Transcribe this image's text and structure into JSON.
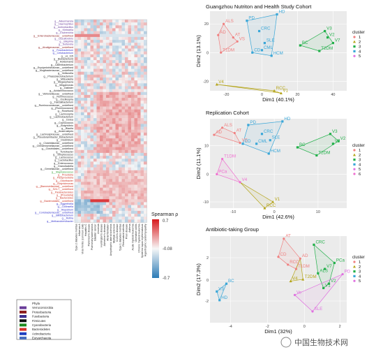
{
  "heatmap": {
    "rows": [
      {
        "label": "g__Akkermansia",
        "color": "#6a3d9a"
      },
      {
        "label": "g__Haemophilus",
        "color": "#6a3d9a"
      },
      {
        "label": "g__Actinobacillus",
        "color": "#6a3d9a"
      },
      {
        "label": "g__Klebsiella",
        "color": "#6a3d9a"
      },
      {
        "label": "g__Escherichia",
        "color": "#6a3d9a"
      },
      {
        "label": "g__Enterobacteriaceae__undefined",
        "color": "#8b1a1a"
      },
      {
        "label": "g__Desulfovibrio",
        "color": "#6a3d9a"
      },
      {
        "label": "g__Bilophila",
        "color": "#6a3d9a"
      },
      {
        "label": "g__Sutterella",
        "color": "#6a3d9a"
      },
      {
        "label": "g__Alcaligenaceae__undefined",
        "color": "#8b1a1a"
      },
      {
        "label": "g__Fusobacterium",
        "color": "#3333cc"
      },
      {
        "label": "g__Cetobacterium",
        "color": "#3333cc"
      },
      {
        "label": "g__vs_115",
        "color": "#222222"
      },
      {
        "label": "g__[Eubacterium]",
        "color": "#222222"
      },
      {
        "label": "g__Holdemania",
        "color": "#222222"
      },
      {
        "label": "g__Catenibacterium",
        "color": "#222222"
      },
      {
        "label": "g__Erysipelotrichaceae__undefined",
        "color": "#222222"
      },
      {
        "label": "g__Mogibacteriaceae__undefined",
        "color": "#222222"
      },
      {
        "label": "g__Veillonella",
        "color": "#222222"
      },
      {
        "label": "g__Phascolarctobacterium",
        "color": "#222222"
      },
      {
        "label": "g__Mitsuokella",
        "color": "#222222"
      },
      {
        "label": "g__Megasphaera",
        "color": "#222222"
      },
      {
        "label": "g__Megamonas",
        "color": "#222222"
      },
      {
        "label": "g__Dialister",
        "color": "#222222"
      },
      {
        "label": "g__Acidaminococcus",
        "color": "#222222"
      },
      {
        "label": "g__Veillonellaceae__undefined",
        "color": "#222222"
      },
      {
        "label": "g__Ruminococcus",
        "color": "#222222"
      },
      {
        "label": "g__Oscillospira",
        "color": "#222222"
      },
      {
        "label": "g__Faecalibacterium",
        "color": "#222222"
      },
      {
        "label": "g__Ruminococcaceae__undefined",
        "color": "#222222"
      },
      {
        "label": "g__[Ruminococcus]",
        "color": "#222222"
      },
      {
        "label": "g__Roseburia",
        "color": "#222222"
      },
      {
        "label": "g__Lachnospira",
        "color": "#222222"
      },
      {
        "label": "g__Lachnobacterium",
        "color": "#222222"
      },
      {
        "label": "g__Dorea",
        "color": "#222222"
      },
      {
        "label": "g__Coprococcus",
        "color": "#222222"
      },
      {
        "label": "g__Butyrivibrio",
        "color": "#222222"
      },
      {
        "label": "g__Blautia",
        "color": "#222222"
      },
      {
        "label": "g__Anaerostipes",
        "color": "#222222"
      },
      {
        "label": "g__Lachnospiraceae__undefined",
        "color": "#222222"
      },
      {
        "label": "g__Pseudoramibacter_Eubacterium",
        "color": "#222222"
      },
      {
        "label": "g__Clostridium",
        "color": "#222222"
      },
      {
        "label": "g__Clostridiaceae__undefined",
        "color": "#222222"
      },
      {
        "label": "g__Christensenellaceae__undefined",
        "color": "#222222"
      },
      {
        "label": "g__Clostridiales__undefined",
        "color": "#222222"
      },
      {
        "label": "g__Turicibacter",
        "color": "#222222"
      },
      {
        "label": "g__Streptococcus",
        "color": "#222222"
      },
      {
        "label": "g__Lactococcus",
        "color": "#222222"
      },
      {
        "label": "g__Lactobacillus",
        "color": "#222222"
      },
      {
        "label": "g__Enterococcus",
        "color": "#222222"
      },
      {
        "label": "g__Granulicatella",
        "color": "#222222"
      },
      {
        "label": "g__Gemellaceae__undefined",
        "color": "#222222"
      },
      {
        "label": "g__Staphylococcus",
        "color": "#2e9e2e"
      },
      {
        "label": "g__Prevotella",
        "color": "#cc3322"
      },
      {
        "label": "g__Paraprevotella",
        "color": "#cc3322"
      },
      {
        "label": "g__Odoribacter",
        "color": "#cc3322"
      },
      {
        "label": "g__Butyricimonas",
        "color": "#cc3322"
      },
      {
        "label": "g__[Barnesiellaceae]__undefined",
        "color": "#cc3322"
      },
      {
        "label": "g__S24-7__undefined",
        "color": "#cc3322"
      },
      {
        "label": "g__Parabacteroides",
        "color": "#cc3322"
      },
      {
        "label": "g__[Prevotella]",
        "color": "#cc3322"
      },
      {
        "label": "g__Bacteroides",
        "color": "#cc3322"
      },
      {
        "label": "g__Bacteroidales__undefined",
        "color": "#cc3322"
      },
      {
        "label": "g__Eggerthella",
        "color": "#3333cc"
      },
      {
        "label": "g__Collinsella",
        "color": "#3333cc"
      },
      {
        "label": "g__Atopobium",
        "color": "#3333cc"
      },
      {
        "label": "g__Coriobacteriaceae__undefined",
        "color": "#3333cc"
      },
      {
        "label": "g__Bifidobacterium",
        "color": "#3333cc"
      },
      {
        "label": "g__Rothia",
        "color": "#3333cc"
      },
      {
        "label": "g__Methanobrevibacter",
        "color": "#3333cc"
      }
    ],
    "columns": [
      "Type 2 diabetes mellitus",
      "Influenza A",
      "Viral rhinitis (common cold)",
      "Hepatitis C",
      "Parkinson's disease",
      "Pulmonary tuberculosis",
      "Bladder cancer",
      "Anorexia",
      "Huntington's disease",
      "Alzheimer's disease",
      "Atrial fibrillation",
      "Amyotrophic lateral sclerosis",
      "Multiple sclerosis",
      "Crohn's disease",
      "Type 1 diabetes mellitus",
      "Rheumatoid arthritis",
      "Prion disease",
      "Asthma",
      "Acute myeloid leukemia",
      "Ulcerative colitis",
      "Chronic myeloid leukemia",
      "Systemic lupus erythematosus",
      "Hypertrophic cardiomyopathy"
    ],
    "legend_title": "Spearman ρ",
    "legend_ticks": [
      "0.7",
      "-0.08",
      "-0.7"
    ],
    "phyla": [
      {
        "name": "Phyla",
        "color": ""
      },
      {
        "name": "Verrucomicrobia",
        "color": "#6a3d9a"
      },
      {
        "name": "Proteobacteria",
        "color": "#8b1a1a"
      },
      {
        "name": "Fusobacteria",
        "color": "#3d2f8f"
      },
      {
        "name": "Firmicutes",
        "color": "#111111"
      },
      {
        "name": "Cyanobacteria",
        "color": "#1f8a1f"
      },
      {
        "name": "Bacteroidetes",
        "color": "#d73027"
      },
      {
        "name": "Actinobacteria",
        "color": "#1f3fbf"
      },
      {
        "name": "Euryarchaeota",
        "color": "#4a6fbf"
      }
    ]
  },
  "pca_plots": [
    {
      "title": "Guangzhou Nutriton and Health Study Cohort",
      "xlabel": "Dim1 (40.1%)",
      "ylabel": "Dim2 (13.1%)",
      "xticks": [
        "-20",
        "0",
        "20",
        "40"
      ],
      "yticks": [
        "-20",
        "0",
        "20"
      ],
      "legend_title": "cluster",
      "legend": [
        "1",
        "2",
        "3",
        "4",
        "5"
      ],
      "points": [
        {
          "label": "ALS",
          "cluster": 1
        },
        {
          "label": "AD",
          "cluster": 1
        },
        {
          "label": "AT",
          "cluster": 1
        },
        {
          "label": "VS",
          "cluster": 1
        },
        {
          "label": "T1DM",
          "cluster": 1
        },
        {
          "label": "PD",
          "cluster": 4
        },
        {
          "label": "CRC",
          "cluster": 4
        },
        {
          "label": "HD",
          "cluster": 4
        },
        {
          "label": "SLE",
          "cluster": 4
        },
        {
          "label": "CD",
          "cluster": 4
        },
        {
          "label": "CML",
          "cluster": 4
        },
        {
          "label": "HCM",
          "cluster": 4
        },
        {
          "label": "BC",
          "cluster": 3
        },
        {
          "label": "V3",
          "cluster": 3
        },
        {
          "label": "V2",
          "cluster": 3
        },
        {
          "label": "V7",
          "cluster": 3
        },
        {
          "label": "T2DM",
          "cluster": 3
        },
        {
          "label": "V4",
          "cluster": 2
        },
        {
          "label": "RCC",
          "cluster": 2
        },
        {
          "label": "V1",
          "cluster": 2
        }
      ]
    },
    {
      "title": "Replication Cohort",
      "xlabel": "Dim1 (42.6%)",
      "ylabel": "Dim2 (11.1%)",
      "xticks": [
        "-10",
        "0",
        "10"
      ],
      "yticks": [
        "-10",
        "0",
        "10"
      ],
      "legend_title": "cluster",
      "legend": [
        "1",
        "2",
        "3",
        "4",
        "5",
        "6"
      ],
      "points": [
        {
          "label": "ALS",
          "cluster": 1
        },
        {
          "label": "AD",
          "cluster": 1
        },
        {
          "label": "AT",
          "cluster": 1
        },
        {
          "label": "VS",
          "cluster": 1
        },
        {
          "label": "PD",
          "cluster": 4
        },
        {
          "label": "HD",
          "cluster": 4
        },
        {
          "label": "CRC",
          "cluster": 4
        },
        {
          "label": "CD",
          "cluster": 4
        },
        {
          "label": "CML",
          "cluster": 4
        },
        {
          "label": "SLE",
          "cluster": 4
        },
        {
          "label": "HCM",
          "cluster": 4
        },
        {
          "label": "BC",
          "cluster": 3
        },
        {
          "label": "V3",
          "cluster": 3
        },
        {
          "label": "V2",
          "cluster": 3
        },
        {
          "label": "V7",
          "cluster": 3
        },
        {
          "label": "T2DM",
          "cluster": 3
        },
        {
          "label": "T1DM",
          "cluster": 6
        },
        {
          "label": "PCa",
          "cluster": 6
        },
        {
          "label": "V4",
          "cluster": 6
        },
        {
          "label": "RCC",
          "cluster": 2
        },
        {
          "label": "V1",
          "cluster": 2
        }
      ]
    },
    {
      "title": "Antibiotic-taking Group",
      "xlabel": "Dim1 (32%)",
      "ylabel": "Dim2 (17.3%)",
      "xticks": [
        "-4",
        "-2",
        "0",
        "2"
      ],
      "yticks": [
        "-2",
        "0",
        "2"
      ],
      "legend_title": "cluster",
      "legend": [
        "1",
        "2",
        "3",
        "4",
        "5"
      ],
      "points": [
        {
          "label": "AT",
          "cluster": 1
        },
        {
          "label": "CD",
          "cluster": 1
        },
        {
          "label": "RCC",
          "cluster": 1
        },
        {
          "label": "T1DM",
          "cluster": 1
        },
        {
          "label": "AD",
          "cluster": 1
        },
        {
          "label": "CRC",
          "cluster": 3
        },
        {
          "label": "ALS",
          "cluster": 3
        },
        {
          "label": "V7",
          "cluster": 3
        },
        {
          "label": "PCa",
          "cluster": 3
        },
        {
          "label": "V1",
          "cluster": 3
        },
        {
          "label": "V2",
          "cluster": 3
        },
        {
          "label": "V4",
          "cluster": 2
        },
        {
          "label": "T2DM",
          "cluster": 2
        },
        {
          "label": "BC",
          "cluster": 4
        },
        {
          "label": "V3",
          "cluster": 4
        },
        {
          "label": "HD",
          "cluster": 4
        },
        {
          "label": "PD",
          "cluster": 5
        },
        {
          "label": "SLE",
          "cluster": 5
        },
        {
          "label": "Ve",
          "cluster": 5
        }
      ]
    }
  ],
  "watermark": "中国生物技术网",
  "colors": {
    "c1": "#f08080",
    "c2": "#b5a51a",
    "c3": "#22b04a",
    "c4": "#3aa7d8",
    "c5": "#e070e0",
    "c6": "#f070d0"
  }
}
